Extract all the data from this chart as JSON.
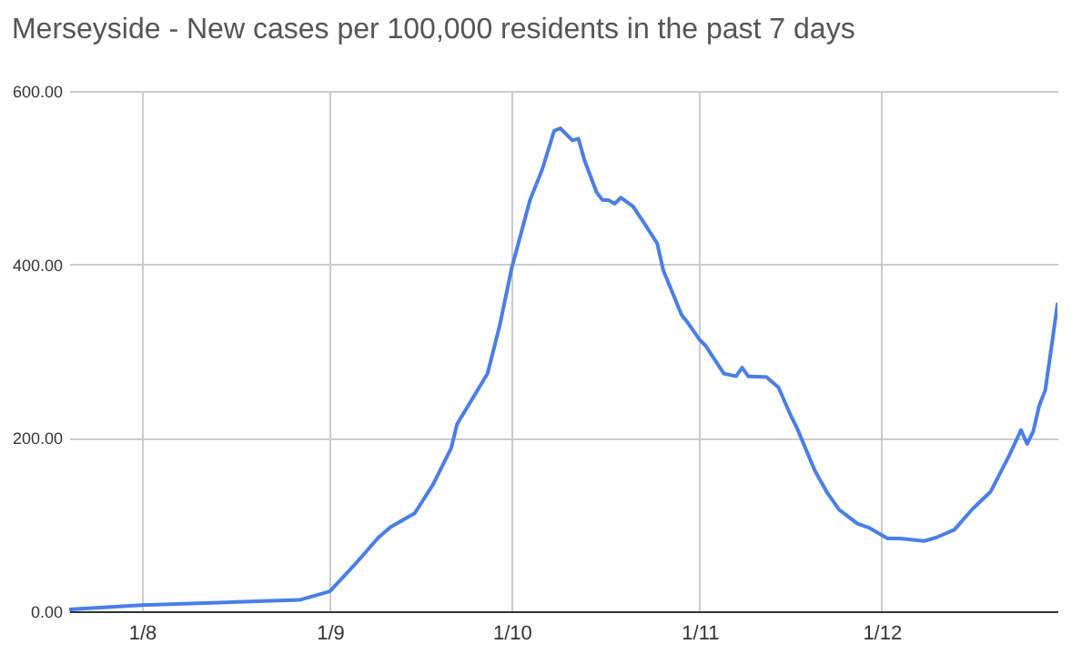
{
  "chart_data": {
    "type": "line",
    "title": "Merseyside - New cases per 100,000 residents in the past 7 days",
    "x": [
      "--07-20",
      "--08-01",
      "--08-27",
      "--09-01",
      "--09-05",
      "--09-09",
      "--09-11",
      "--09-15",
      "--09-18",
      "--09-21",
      "--09-22",
      "--09-27",
      "--09-29",
      "--10-01",
      "--10-04",
      "--10-06",
      "--10-08",
      "--10-09",
      "--10-11",
      "--10-12",
      "--10-13",
      "--10-15",
      "--10-16",
      "--10-17",
      "--10-18",
      "--10-19",
      "--10-21",
      "--10-23",
      "--10-25",
      "--10-26",
      "--10-29",
      "--10-30",
      "--11-01",
      "--11-02",
      "--11-05",
      "--11-07",
      "--11-08",
      "--11-09",
      "--11-12",
      "--11-14",
      "--11-16",
      "--11-17",
      "--11-20",
      "--11-22",
      "--11-24",
      "--11-27",
      "--11-29",
      "--12-02",
      "--12-04",
      "--12-08",
      "--12-10",
      "--12-13",
      "--12-16",
      "--12-19",
      "--12-22",
      "--12-24",
      "--12-25",
      "--12-26",
      "--12-27",
      "--12-28",
      "--12-29",
      "--12-30"
    ],
    "series": [
      {
        "color": "#4a7ee8",
        "values": [
          2,
          7,
          13,
          23,
          53,
          85,
          97,
          113,
          146,
          188,
          216,
          274,
          329,
          396,
          474,
          509,
          554,
          557,
          543,
          545,
          520,
          483,
          474,
          474,
          470,
          477,
          467,
          446,
          424,
          393,
          342,
          333,
          313,
          306,
          274,
          271,
          281,
          271,
          270,
          258,
          226,
          212,
          162,
          137,
          117,
          101,
          96,
          84,
          84,
          81,
          85,
          94,
          118,
          138,
          179,
          209,
          193,
          207,
          237,
          255,
          304,
          354
        ]
      }
    ],
    "xlim": [
      "--07-20",
      "--12-30"
    ],
    "xticks": [
      {
        "value": "--08-01",
        "label": "1/8"
      },
      {
        "value": "--09-01",
        "label": "1/9"
      },
      {
        "value": "--10-01",
        "label": "1/10"
      },
      {
        "value": "--11-01",
        "label": "1/11"
      },
      {
        "value": "--12-01",
        "label": "1/12"
      }
    ],
    "ylim": [
      0,
      600
    ],
    "yticks": [
      {
        "value": 0,
        "label": "0.00"
      },
      {
        "value": 200,
        "label": "200.00"
      },
      {
        "value": 400,
        "label": "400.00"
      },
      {
        "value": 600,
        "label": "600.00"
      }
    ],
    "grid": true
  }
}
